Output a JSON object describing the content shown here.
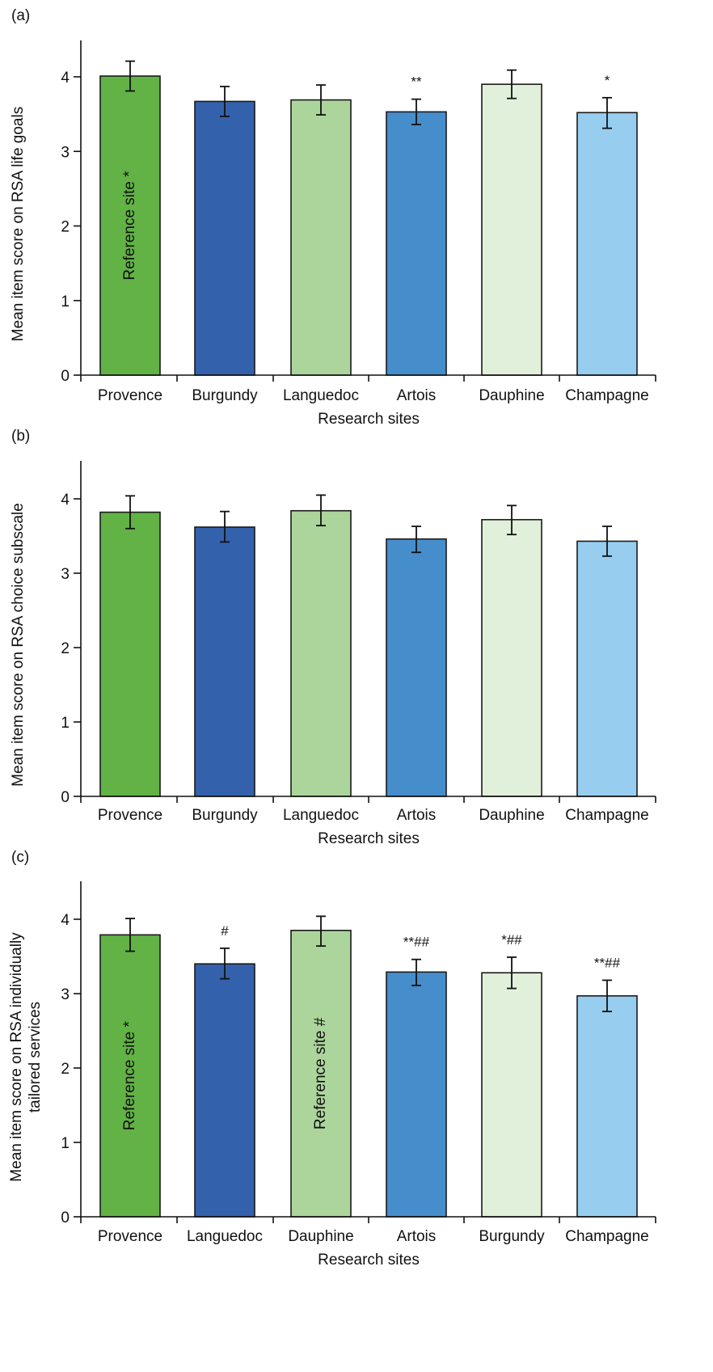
{
  "chart_data": [
    {
      "type": "bar",
      "panel_label": "(a)",
      "xlabel": "Research sites",
      "ylabel": "Mean item score on RSA life goals",
      "ylim": [
        0,
        4.5
      ],
      "yticks": [
        "0",
        "1",
        "2",
        "3",
        "4"
      ],
      "categories": [
        "Provence",
        "Burgundy",
        "Languedoc",
        "Artois",
        "Dauphine",
        "Champagne"
      ],
      "values": [
        4.01,
        3.67,
        3.69,
        3.53,
        3.9,
        3.52
      ],
      "error_low": [
        3.81,
        3.47,
        3.49,
        3.36,
        3.71,
        3.31
      ],
      "error_high": [
        4.21,
        3.87,
        3.89,
        3.7,
        4.09,
        3.72
      ],
      "colors": [
        "#62b246",
        "#3461ac",
        "#acd59c",
        "#468dcc",
        "#e1f0db",
        "#97cdef"
      ],
      "annotations": [
        "",
        "",
        "",
        "**",
        "",
        "*"
      ],
      "inside_labels": [
        "Reference site *",
        "",
        "",
        "",
        "",
        ""
      ]
    },
    {
      "type": "bar",
      "panel_label": "(b)",
      "xlabel": "Research sites",
      "ylabel": "Mean item score on RSA choice subscale",
      "ylim": [
        0,
        4.5
      ],
      "yticks": [
        "0",
        "1",
        "2",
        "3",
        "4"
      ],
      "categories": [
        "Provence",
        "Burgundy",
        "Languedoc",
        "Artois",
        "Dauphine",
        "Champagne"
      ],
      "values": [
        3.82,
        3.62,
        3.84,
        3.46,
        3.72,
        3.43
      ],
      "error_low": [
        3.6,
        3.42,
        3.64,
        3.28,
        3.52,
        3.23
      ],
      "error_high": [
        4.04,
        3.83,
        4.05,
        3.63,
        3.91,
        3.63
      ],
      "colors": [
        "#62b246",
        "#3461ac",
        "#acd59c",
        "#468dcc",
        "#e1f0db",
        "#97cdef"
      ],
      "annotations": [
        "",
        "",
        "",
        "",
        "",
        ""
      ],
      "inside_labels": [
        "",
        "",
        "",
        "",
        "",
        ""
      ]
    },
    {
      "type": "bar",
      "panel_label": "(c)",
      "xlabel": "Research sites",
      "ylabel_lines": [
        "Mean item score on RSA individually",
        "tailored services"
      ],
      "ylim": [
        0,
        4.5
      ],
      "yticks": [
        "0",
        "1",
        "2",
        "3",
        "4"
      ],
      "categories": [
        "Provence",
        "Languedoc",
        "Dauphine",
        "Artois",
        "Burgundy",
        "Champagne"
      ],
      "values": [
        3.79,
        3.4,
        3.85,
        3.29,
        3.28,
        2.97
      ],
      "error_low": [
        3.57,
        3.2,
        3.64,
        3.11,
        3.07,
        2.76
      ],
      "error_high": [
        4.01,
        3.61,
        4.04,
        3.46,
        3.49,
        3.18
      ],
      "colors": [
        "#62b246",
        "#3461ac",
        "#acd59c",
        "#468dcc",
        "#e1f0db",
        "#97cdef"
      ],
      "annotations": [
        "",
        "#",
        "",
        "**##",
        "*##",
        "**##"
      ],
      "inside_labels": [
        "Reference site *",
        "",
        "Reference site #",
        "",
        "",
        ""
      ]
    }
  ]
}
